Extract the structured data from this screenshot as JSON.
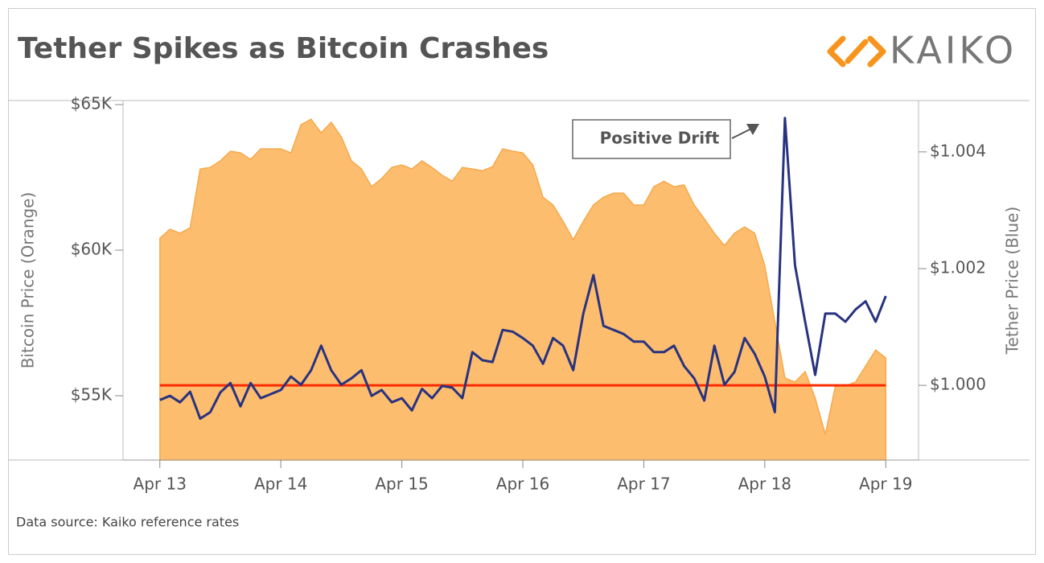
{
  "chart_data": {
    "type": "area",
    "title": "Tether Spikes as Bitcoin Crashes",
    "logo": "KAIKO",
    "source": "Data source: Kaiko reference rates",
    "y_label": "Bitcoin Price (Orange)",
    "y2_label": "Tether Price (Blue)",
    "annotation": {
      "text": "Positive Drift"
    },
    "x": [
      0,
      2,
      4,
      6,
      8,
      10,
      12,
      14,
      16,
      18,
      20,
      22,
      24,
      26,
      28,
      30,
      32,
      34,
      36,
      38,
      40,
      42,
      44,
      46,
      48,
      50,
      52,
      54,
      56,
      58,
      60,
      62,
      64,
      66,
      68,
      70,
      72,
      74,
      76,
      78,
      80,
      82,
      84,
      86,
      88,
      90,
      92,
      94,
      96,
      98,
      100,
      102,
      104,
      106,
      108,
      110,
      112,
      114,
      116,
      118,
      120,
      122,
      124,
      126,
      128,
      130,
      132,
      134,
      136,
      138,
      140,
      142,
      144
    ],
    "xlim": [
      -7.3,
      150.5
    ],
    "xticks": [
      {
        "value": 0,
        "label": "Apr 13"
      },
      {
        "value": 24,
        "label": "Apr 14"
      },
      {
        "value": 48,
        "label": "Apr 15"
      },
      {
        "value": 72,
        "label": "Apr 16"
      },
      {
        "value": 96,
        "label": "Apr 17"
      },
      {
        "value": 120,
        "label": "Apr 18"
      },
      {
        "value": 144,
        "label": "Apr 19"
      }
    ],
    "ylim": [
      52790,
      65140
    ],
    "yticks": [
      {
        "value": 55000,
        "label": "$55K"
      },
      {
        "value": 60000,
        "label": "$60K"
      },
      {
        "value": 65000,
        "label": "$65K"
      }
    ],
    "y2lim": [
      0.99872,
      1.00488
    ],
    "y2ticks": [
      {
        "value": 1.0,
        "label": "$1.000"
      },
      {
        "value": 1.002,
        "label": "$1.002"
      },
      {
        "value": 1.004,
        "label": "$1.004"
      }
    ],
    "reference_line": {
      "value": 1.0,
      "axis": "y2",
      "color": "#ff2a00"
    },
    "series": [
      {
        "type": "area",
        "color": "#fdbd6f",
        "values": [
          60410,
          60720,
          60580,
          60770,
          62790,
          62840,
          63070,
          63400,
          63340,
          63120,
          63480,
          63480,
          63480,
          63340,
          64310,
          64500,
          64030,
          64390,
          63890,
          63070,
          62790,
          62180,
          62460,
          62840,
          62930,
          62790,
          63070,
          62840,
          62570,
          62370,
          62840,
          62790,
          62730,
          62870,
          63480,
          63400,
          63340,
          62930,
          61820,
          61550,
          60990,
          60360,
          60990,
          61550,
          61820,
          61960,
          61960,
          61550,
          61550,
          62180,
          62370,
          62180,
          62240,
          61550,
          61080,
          60580,
          60160,
          60580,
          60800,
          60580,
          59470,
          57540,
          55610,
          55470,
          55830,
          54920,
          53670,
          55330,
          55330,
          55470,
          56020,
          56570,
          56300
        ]
      },
      {
        "type": "line",
        "axis": "y2",
        "color": "#28337f",
        "values": [
          0.99975,
          0.99982,
          0.99971,
          0.99989,
          0.99943,
          0.99954,
          0.99988,
          1.00004,
          0.99964,
          1.00004,
          0.99978,
          0.99985,
          0.99992,
          1.00015,
          1.00001,
          1.00026,
          1.00068,
          1.00026,
          1.00001,
          1.00012,
          1.00026,
          0.99982,
          0.99992,
          0.99971,
          0.99978,
          0.99957,
          0.99994,
          0.99978,
          0.99999,
          0.99996,
          0.99978,
          1.00057,
          1.00043,
          1.0004,
          1.00095,
          1.00092,
          1.00081,
          1.00068,
          1.00037,
          1.00081,
          1.00068,
          1.00026,
          1.00123,
          1.00189,
          1.00102,
          1.00095,
          1.00088,
          1.00075,
          1.00075,
          1.00057,
          1.00057,
          1.00068,
          1.00033,
          1.00012,
          0.99974,
          1.00068,
          1.00001,
          1.00023,
          1.00081,
          1.00054,
          1.00015,
          0.99954,
          1.00458,
          1.00206,
          1.00109,
          1.00018,
          1.00123,
          1.00123,
          1.00109,
          1.0013,
          1.00144,
          1.00109,
          1.00153
        ]
      }
    ]
  }
}
